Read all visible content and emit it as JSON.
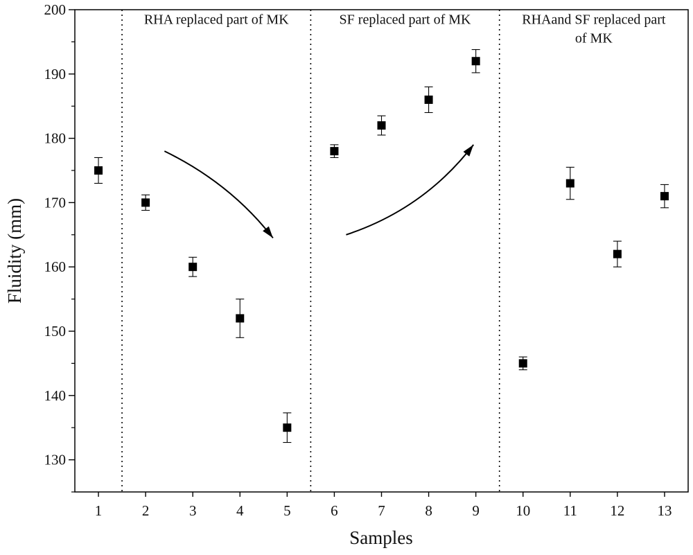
{
  "chart_data": {
    "type": "scatter",
    "title": "",
    "xlabel": "Samples",
    "ylabel": "Fluidity (mm)",
    "xlim": [
      0.5,
      13.5
    ],
    "ylim": [
      125,
      200
    ],
    "xticks": [
      1,
      2,
      3,
      4,
      5,
      6,
      7,
      8,
      9,
      10,
      11,
      12,
      13
    ],
    "xtick_labels": [
      "1",
      "2",
      "3",
      "4",
      "5",
      "6",
      "7",
      "8",
      "9",
      "10",
      "11",
      "12",
      "13"
    ],
    "yticks": [
      130,
      140,
      150,
      160,
      170,
      180,
      190,
      200
    ],
    "ytick_labels": [
      "130",
      "140",
      "150",
      "160",
      "170",
      "180",
      "190",
      "200"
    ],
    "series": [
      {
        "name": "Fluidity",
        "marker": "square",
        "color": "#000000",
        "x": [
          1,
          2,
          3,
          4,
          5,
          6,
          7,
          8,
          9,
          10,
          11,
          12,
          13
        ],
        "y": [
          175,
          170,
          160,
          152,
          135,
          178,
          182,
          186,
          192,
          145,
          173,
          162,
          171
        ],
        "err_low": [
          2.0,
          1.2,
          1.5,
          3.0,
          2.3,
          1.0,
          1.5,
          2.0,
          1.8,
          1.0,
          2.5,
          2.0,
          1.8
        ],
        "err_high": [
          2.0,
          1.2,
          1.5,
          3.0,
          2.3,
          1.0,
          1.5,
          2.0,
          1.8,
          1.0,
          2.5,
          2.0,
          1.8
        ]
      }
    ],
    "dividers": [
      1.5,
      5.5,
      9.5
    ],
    "regions": [
      {
        "x_center": 3.5,
        "y": 198,
        "lines": [
          "RHA replaced part of MK"
        ]
      },
      {
        "x_center": 7.5,
        "y": 198,
        "lines": [
          "SF replaced part of MK"
        ]
      },
      {
        "x_center": 11.5,
        "y": 198,
        "lines": [
          "RHAand SF replaced part",
          "of MK"
        ]
      }
    ],
    "annotations": [
      {
        "type": "curved-arrow",
        "name": "decreasing-trend-arrow",
        "from": [
          2.4,
          178
        ],
        "ctrl": [
          3.8,
          173
        ],
        "to": [
          4.7,
          164.5
        ]
      },
      {
        "type": "curved-arrow",
        "name": "increasing-trend-arrow",
        "from": [
          6.25,
          165
        ],
        "ctrl": [
          7.9,
          169
        ],
        "to": [
          8.95,
          179
        ]
      }
    ]
  }
}
